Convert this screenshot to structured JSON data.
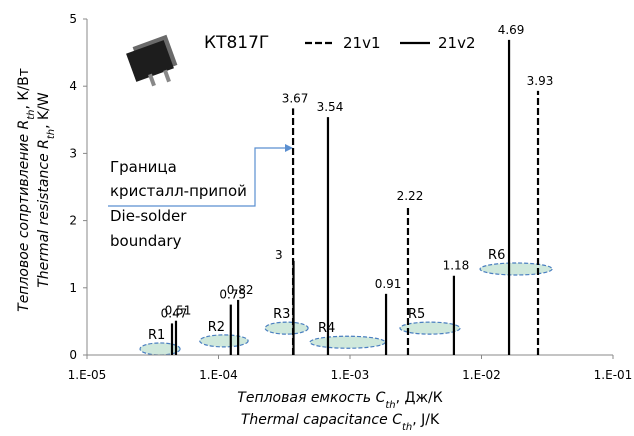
{
  "chart_data": {
    "type": "spike",
    "title": "КТ817Г",
    "xlabel": {
      "ru": {
        "text": "Тепловая емкость C",
        "sub": "th",
        "unit": ",  Дж/К"
      },
      "en": {
        "text": "Thermal capacitance C",
        "sub": "th",
        "unit": ",  J/K"
      }
    },
    "ylabel": {
      "ru": {
        "text": "Тепловое сопртивление R",
        "sub": "th",
        "unit": ",  К/Вт"
      },
      "en": {
        "text": "Thermal resistance R",
        "sub": "th",
        "unit": ",  K/W"
      }
    },
    "xscale": "log",
    "xlim": [
      1e-05,
      0.1
    ],
    "xticks": [
      {
        "value": 1e-05,
        "label": "1.E-05"
      },
      {
        "value": 0.0001,
        "label": "1.E-04"
      },
      {
        "value": 0.001,
        "label": "1.E-03"
      },
      {
        "value": 0.01,
        "label": "1.E-02"
      },
      {
        "value": 0.1,
        "label": "1.E-01"
      }
    ],
    "ylim": [
      0,
      5
    ],
    "yticks": [
      0,
      1,
      2,
      3,
      4,
      5
    ],
    "series": [
      {
        "name": "21v1",
        "color": "#000000",
        "dash": true,
        "x": [
          0.000369,
          0.00276,
          0.0269
        ],
        "values": [
          3.67,
          2.22,
          3.93
        ]
      },
      {
        "name": "21v2",
        "color": "#000000",
        "dash": false,
        "x": [
          4.43e-05,
          4.75e-05,
          0.000124,
          0.000141,
          0.000372,
          0.00068,
          0.00188,
          0.00617,
          0.0162
        ],
        "values": [
          0.47,
          0.51,
          0.75,
          0.82,
          1.4,
          3.54,
          0.91,
          1.18,
          4.69
        ],
        "value_labels": [
          "0.47",
          "0.51",
          "0.75",
          "0.82",
          null,
          "3.54",
          "0.91",
          "1.18",
          "4.69"
        ]
      }
    ],
    "regions": [
      {
        "label": "R1",
        "x": [
          2.53e-05,
          5.1e-05
        ],
        "y": 0.09
      },
      {
        "label": "R2",
        "x": [
          7.2e-05,
          0.000168
        ],
        "y": 0.21
      },
      {
        "label": "R3",
        "x": [
          0.000226,
          0.00048
        ],
        "y": 0.4
      },
      {
        "label": "R4",
        "x": [
          0.000496,
          0.00185
        ],
        "y": 0.19
      },
      {
        "label": "R5",
        "x": [
          0.0024,
          0.00687
        ],
        "y": 0.4
      },
      {
        "label": "R6",
        "x": [
          0.00975,
          0.0344
        ],
        "y": 1.28
      }
    ],
    "annotations": {
      "boundary": [
        "Граница",
        "кристалл-припой",
        "Die-solder",
        "boundary"
      ],
      "cut_label": "3"
    }
  }
}
